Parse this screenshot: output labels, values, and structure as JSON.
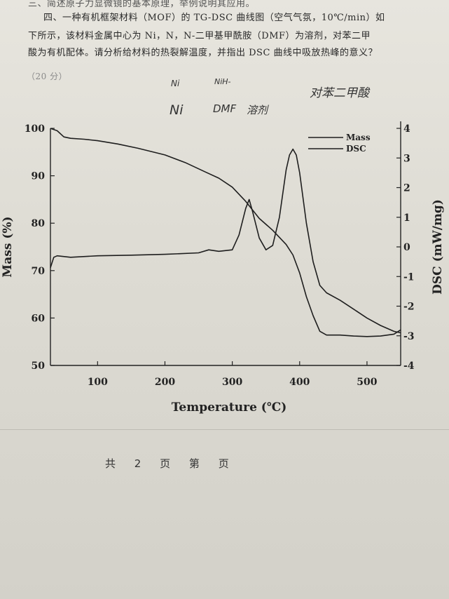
{
  "question": {
    "line1": "三、简述原子力显微镜的基本原理，举例说明其应用。",
    "line2": "四、一种有机框架材料（MOF）的 TG-DSC 曲线图（空气气氛，10℃/min）如",
    "line3": "下所示，该材料金属中心为 Ni，N，N-二甲基甲酰胺（DMF）为溶剂，对苯二甲",
    "line4": "酸为有机配体。请分析给材料的热裂解温度，并指出 DSC 曲线中吸放热峰的意义？",
    "points": "（20 分）"
  },
  "handwriting": {
    "note1": "Ni",
    "note2": "NiH-",
    "note3": "Ni",
    "note4": "DMF",
    "note5": "溶剂",
    "note6": "对苯二甲酸"
  },
  "footer": {
    "total": "共",
    "count": "2",
    "page_word": "页",
    "nth": "第",
    "page_word2": "页"
  },
  "chart_data": {
    "type": "line",
    "title": "",
    "xlabel": "Temperature (℃)",
    "ylabel_left": "Mass (%)",
    "ylabel_right": "DSC (mW/mg)",
    "xlim": [
      30,
      550
    ],
    "ylim_left": [
      50,
      100
    ],
    "ylim_right": [
      -4,
      4
    ],
    "x_ticks": [
      100,
      200,
      300,
      400,
      500
    ],
    "y_left_ticks": [
      50,
      60,
      70,
      80,
      90,
      100
    ],
    "y_right_ticks": [
      -4,
      -3,
      -2,
      -1,
      0,
      1,
      2,
      3,
      4
    ],
    "legend_position": "top-right",
    "grid": false,
    "series": [
      {
        "name": "Mass",
        "axis": "left",
        "x": [
          30,
          40,
          50,
          60,
          80,
          100,
          130,
          160,
          200,
          230,
          260,
          280,
          300,
          320,
          340,
          360,
          380,
          390,
          400,
          410,
          420,
          430,
          440,
          460,
          480,
          500,
          520,
          540,
          550
        ],
        "y": [
          100,
          99.5,
          98.2,
          97.9,
          97.7,
          97.4,
          96.7,
          95.8,
          94.4,
          92.8,
          90.8,
          89.5,
          87.6,
          84.6,
          81.0,
          78.5,
          75.5,
          73.3,
          69.5,
          64.5,
          60.5,
          57.2,
          56.4,
          56.4,
          56.2,
          56.1,
          56.2,
          56.6,
          57.5
        ]
      },
      {
        "name": "DSC",
        "axis": "right",
        "x": [
          30,
          35,
          40,
          60,
          100,
          150,
          200,
          250,
          265,
          280,
          300,
          310,
          320,
          325,
          330,
          340,
          350,
          360,
          370,
          380,
          385,
          390,
          395,
          400,
          410,
          420,
          430,
          440,
          460,
          480,
          500,
          520,
          540,
          550
        ],
        "y": [
          -0.7,
          -0.35,
          -0.3,
          -0.35,
          -0.3,
          -0.28,
          -0.25,
          -0.2,
          -0.1,
          -0.15,
          -0.1,
          0.4,
          1.3,
          1.6,
          1.2,
          0.3,
          -0.1,
          0.05,
          1.0,
          2.6,
          3.1,
          3.3,
          3.1,
          2.5,
          0.8,
          -0.5,
          -1.3,
          -1.55,
          -1.8,
          -2.1,
          -2.4,
          -2.65,
          -2.85,
          -2.9
        ]
      }
    ]
  }
}
